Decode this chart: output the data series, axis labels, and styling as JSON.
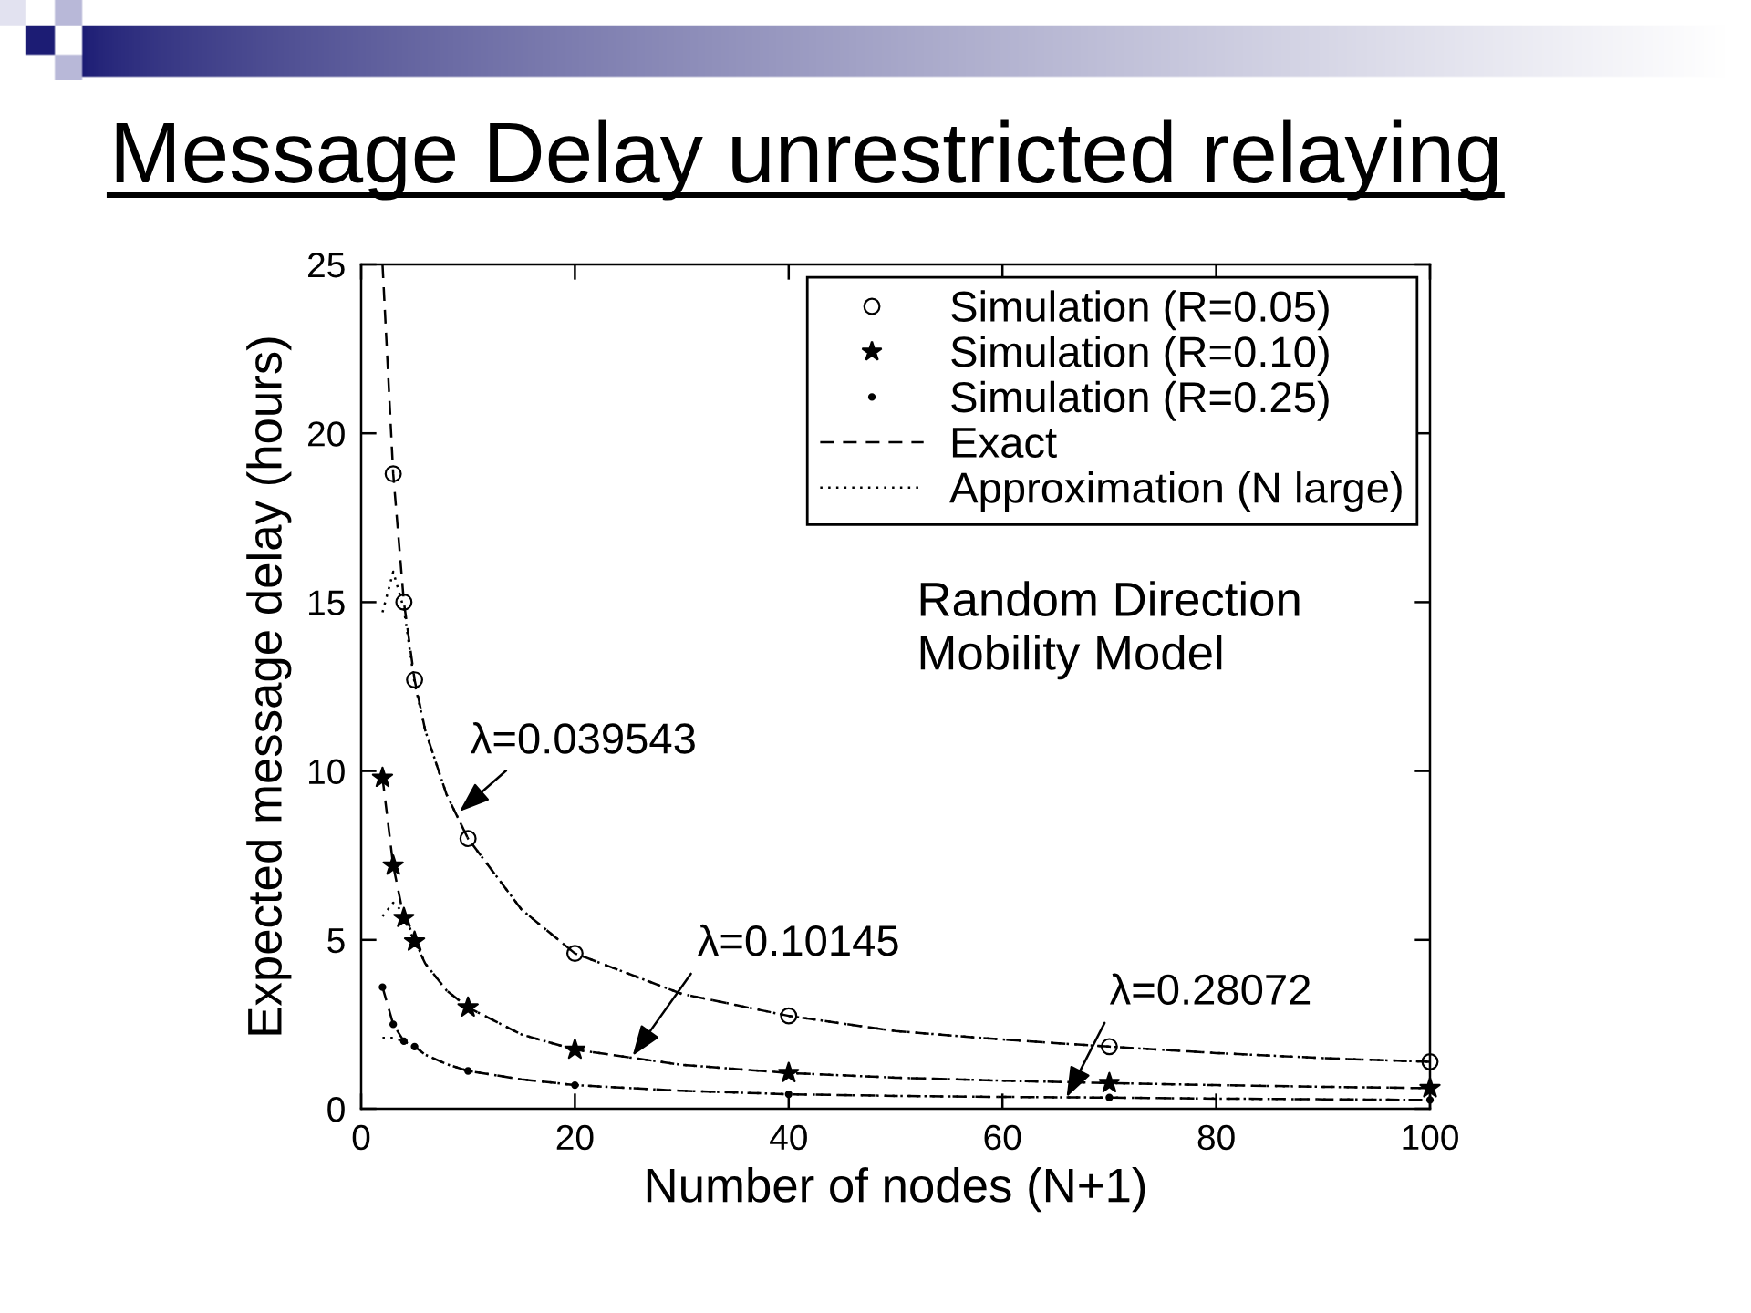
{
  "chart_data": {
    "type": "line",
    "title": "Message Delay unrestricted relaying",
    "xlabel": "Number of nodes (N+1)",
    "ylabel": "Expected message delay (hours)",
    "xlim": [
      0,
      100
    ],
    "ylim": [
      0,
      25
    ],
    "xticks": [
      0,
      20,
      40,
      60,
      80,
      100
    ],
    "yticks": [
      0,
      5,
      10,
      15,
      20,
      25
    ],
    "legend": "top right",
    "series": [
      {
        "type": "scatter",
        "name": "Simulation (R=0.05)",
        "color": "#000000",
        "marker": "circle",
        "x": [
          3,
          4,
          5,
          10,
          20,
          40,
          70,
          100
        ],
        "values": [
          18.8,
          15.0,
          12.7,
          8.0,
          4.6,
          2.75,
          1.84,
          1.39
        ]
      },
      {
        "type": "scatter",
        "name": "Simulation (R=0.10)",
        "color": "#000000",
        "marker": "star",
        "x": [
          2,
          3,
          4,
          5,
          10,
          20,
          40,
          70,
          100
        ],
        "values": [
          9.8,
          7.2,
          5.65,
          4.95,
          3.0,
          1.75,
          1.06,
          0.76,
          0.61
        ]
      },
      {
        "type": "scatter",
        "name": "Simulation (R=0.25)",
        "color": "#000000",
        "marker": "point",
        "x": [
          2,
          3,
          4,
          5,
          10,
          20,
          40,
          70,
          100
        ],
        "values": [
          3.6,
          2.5,
          2.0,
          1.84,
          1.12,
          0.7,
          0.43,
          0.33,
          0.26
        ]
      },
      {
        "name": "Exact",
        "color": "#000000",
        "line_style": "dashed",
        "x": [
          2,
          3,
          4,
          5,
          6,
          8,
          10,
          15,
          20,
          30,
          40,
          50,
          60,
          70,
          80,
          90,
          100
        ],
        "values": [
          25,
          18.8,
          15.0,
          12.7,
          11.2,
          9.3,
          8.0,
          5.9,
          4.6,
          3.4,
          2.75,
          2.3,
          2.05,
          1.84,
          1.65,
          1.5,
          1.39
        ]
      },
      {
        "color": "#000000",
        "line_style": "dashed",
        "x": [
          2,
          3,
          4,
          5,
          6,
          8,
          10,
          15,
          20,
          30,
          40,
          50,
          60,
          70,
          80,
          90,
          100
        ],
        "values": [
          9.8,
          7.2,
          5.65,
          4.95,
          4.3,
          3.5,
          3.0,
          2.2,
          1.75,
          1.3,
          1.06,
          0.92,
          0.83,
          0.76,
          0.7,
          0.65,
          0.61
        ]
      },
      {
        "color": "#000000",
        "line_style": "dashed",
        "x": [
          2,
          3,
          4,
          5,
          6,
          8,
          10,
          15,
          20,
          30,
          40,
          50,
          60,
          70,
          80,
          90,
          100
        ],
        "values": [
          3.6,
          2.5,
          2.0,
          1.84,
          1.6,
          1.32,
          1.12,
          0.87,
          0.7,
          0.53,
          0.43,
          0.38,
          0.35,
          0.33,
          0.3,
          0.28,
          0.26
        ]
      },
      {
        "name": "Approximation (N large)",
        "color": "#000000",
        "line_style": "dotted",
        "x": [
          2,
          3,
          4,
          5,
          6,
          8,
          10,
          15,
          20,
          30,
          40,
          50,
          60,
          70,
          80,
          90,
          100
        ],
        "values": [
          14.7,
          15.9,
          14.8,
          12.6,
          11.2,
          9.3,
          8.0,
          5.9,
          4.6,
          3.4,
          2.75,
          2.3,
          2.05,
          1.84,
          1.65,
          1.5,
          1.39
        ]
      },
      {
        "color": "#000000",
        "line_style": "dotted",
        "x": [
          2,
          3,
          4,
          5,
          6,
          8,
          10,
          15,
          20,
          30,
          40,
          50,
          60,
          70,
          80,
          90,
          100
        ],
        "values": [
          5.7,
          6.1,
          5.8,
          5.0,
          4.3,
          3.5,
          3.0,
          2.2,
          1.75,
          1.3,
          1.06,
          0.92,
          0.83,
          0.76,
          0.7,
          0.65,
          0.61
        ]
      },
      {
        "color": "#000000",
        "line_style": "dotted",
        "x": [
          2,
          3,
          4,
          5,
          6,
          8,
          10,
          15,
          20,
          30,
          40,
          50,
          60,
          70,
          80,
          90,
          100
        ],
        "values": [
          2.1,
          2.1,
          2.0,
          1.84,
          1.6,
          1.32,
          1.12,
          0.87,
          0.7,
          0.53,
          0.43,
          0.38,
          0.35,
          0.33,
          0.3,
          0.28,
          0.26
        ]
      }
    ],
    "annotations": [
      {
        "text": "λ=0.039543",
        "x": 9.2,
        "y": 8.8
      },
      {
        "text": "λ=0.10145",
        "x": 25.4,
        "y": 1.57
      },
      {
        "text": "λ=0.28072",
        "x": 66,
        "y": 0.34
      },
      "Random Direction\nMobility Model"
    ]
  }
}
